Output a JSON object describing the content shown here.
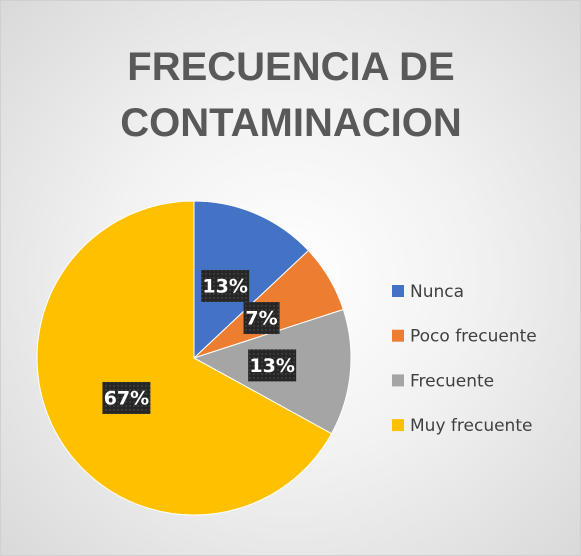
{
  "chart_data": {
    "type": "pie",
    "title": "FRECUENCIA DE CONTAMINACION",
    "categories": [
      "Nunca",
      "Poco frecuente",
      "Frecuente",
      "Muy frecuente"
    ],
    "values": [
      13,
      7,
      13,
      67
    ],
    "value_labels": [
      "13%",
      "7%",
      "13%",
      "67%"
    ],
    "colors": [
      "#4472c4",
      "#ed7d31",
      "#a5a5a5",
      "#ffc000"
    ],
    "legend": "right"
  }
}
